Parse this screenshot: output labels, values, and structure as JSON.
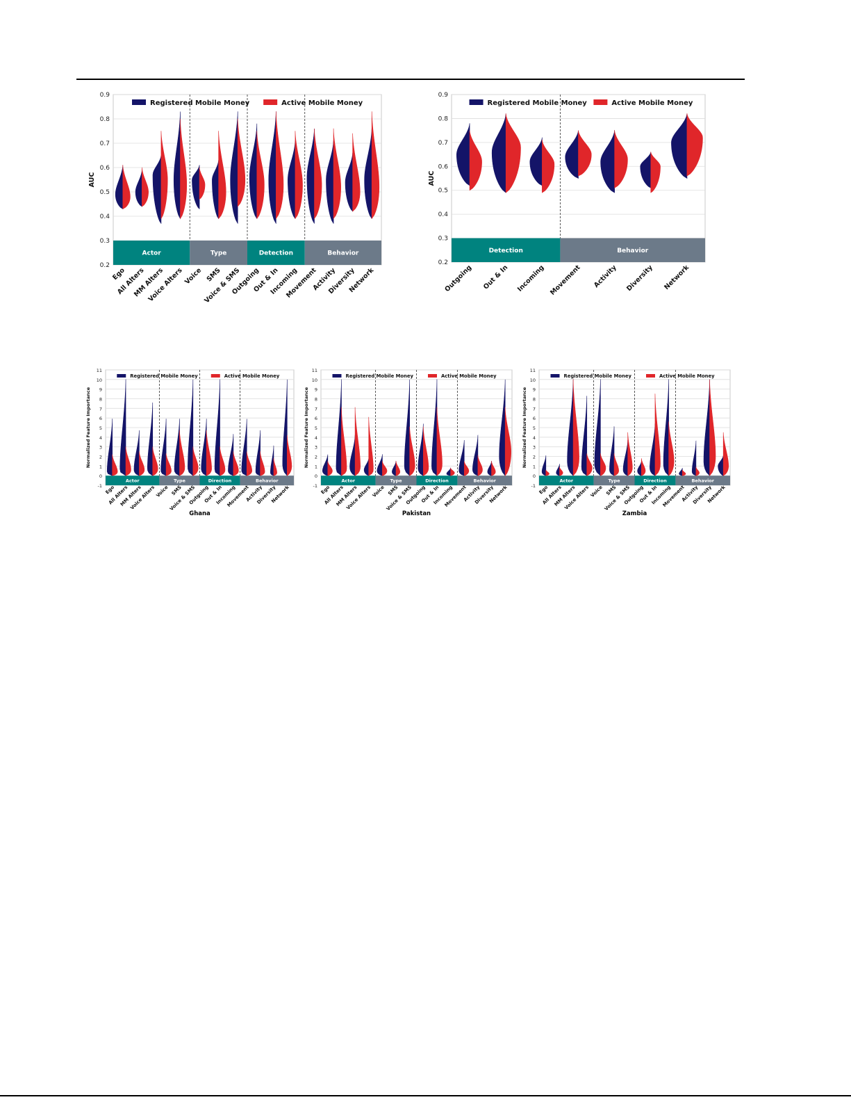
{
  "colors": {
    "registered": "#141468",
    "active": "#e0262a",
    "teal": "#00837f",
    "slate": "#6c7a89",
    "grid": "#dddddd",
    "frame": "#c8c8c8"
  },
  "chart_data": [
    {
      "type": "violin",
      "ylabel": "AUC",
      "ylim": [
        0.2,
        0.9
      ],
      "yticks": [
        0.2,
        0.3,
        0.4,
        0.5,
        0.6,
        0.7,
        0.8,
        0.9
      ],
      "legend_placement": "top",
      "legend": [
        "Registered Mobile Money",
        "Active Mobile Money"
      ],
      "band_top": 0.3,
      "categories": [
        "Ego",
        "All Alters",
        "MM Alters",
        "Voice Alters",
        "Voice",
        "SMS",
        "Voice & SMS",
        "Outgoing",
        "Out & In",
        "Incoming",
        "Movement",
        "Activity",
        "Diversity",
        "Network"
      ],
      "groups": [
        {
          "label": "Actor",
          "color": "teal",
          "span": [
            0,
            4
          ]
        },
        {
          "label": "Type",
          "color": "slate",
          "span": [
            4,
            7
          ]
        },
        {
          "label": "Detection",
          "color": "teal",
          "span": [
            7,
            10
          ]
        },
        {
          "label": "Behavior",
          "color": "slate",
          "span": [
            10,
            14
          ]
        }
      ],
      "series": [
        {
          "name": "Registered Mobile Money",
          "min": [
            0.43,
            0.44,
            0.37,
            0.39,
            0.43,
            0.39,
            0.37,
            0.39,
            0.37,
            0.39,
            0.37,
            0.37,
            0.42,
            0.39
          ],
          "max": [
            0.61,
            0.59,
            0.65,
            0.83,
            0.61,
            0.63,
            0.83,
            0.78,
            0.83,
            0.71,
            0.76,
            0.71,
            0.66,
            0.76
          ],
          "peak": [
            0.49,
            0.5,
            0.57,
            0.55,
            0.55,
            0.55,
            0.55,
            0.56,
            0.55,
            0.55,
            0.56,
            0.55,
            0.54,
            0.55
          ],
          "width": [
            0.8,
            0.7,
            0.9,
            0.7,
            0.8,
            0.7,
            0.8,
            0.8,
            0.8,
            0.8,
            0.8,
            0.8,
            0.8,
            0.8
          ]
        },
        {
          "name": "Active Mobile Money",
          "min": [
            0.43,
            0.44,
            0.39,
            0.39,
            0.47,
            0.39,
            0.44,
            0.39,
            0.39,
            0.39,
            0.39,
            0.39,
            0.42,
            0.39
          ],
          "max": [
            0.61,
            0.6,
            0.75,
            0.8,
            0.6,
            0.75,
            0.8,
            0.75,
            0.83,
            0.75,
            0.76,
            0.76,
            0.74,
            0.83
          ],
          "peak": [
            0.48,
            0.5,
            0.55,
            0.53,
            0.53,
            0.5,
            0.55,
            0.53,
            0.53,
            0.53,
            0.53,
            0.52,
            0.5,
            0.52
          ],
          "width": [
            0.8,
            0.7,
            0.7,
            0.7,
            0.6,
            0.8,
            0.8,
            0.8,
            0.8,
            0.8,
            0.8,
            0.8,
            0.8,
            0.8
          ]
        }
      ]
    },
    {
      "type": "violin",
      "ylabel": "AUC",
      "ylim": [
        0.2,
        0.9
      ],
      "yticks": [
        0.2,
        0.3,
        0.4,
        0.5,
        0.6,
        0.7,
        0.8,
        0.9
      ],
      "legend_placement": "top",
      "legend": [
        "Registered Mobile Money",
        "Active Mobile Money"
      ],
      "band_top": 0.3,
      "categories": [
        "Outgoing",
        "Out & In",
        "Incoming",
        "Movement",
        "Activity",
        "Diversity",
        "Network"
      ],
      "groups": [
        {
          "label": "Detection",
          "color": "teal",
          "span": [
            0,
            3
          ]
        },
        {
          "label": "Behavior",
          "color": "slate",
          "span": [
            3,
            7
          ]
        }
      ],
      "series": [
        {
          "name": "Registered Mobile Money",
          "min": [
            0.52,
            0.49,
            0.52,
            0.55,
            0.49,
            0.51,
            0.55
          ],
          "max": [
            0.78,
            0.82,
            0.72,
            0.75,
            0.75,
            0.66,
            0.82
          ],
          "peak": [
            0.65,
            0.66,
            0.62,
            0.64,
            0.62,
            0.6,
            0.7
          ],
          "width": [
            0.75,
            0.8,
            0.7,
            0.75,
            0.8,
            0.6,
            0.9
          ]
        },
        {
          "name": "Active Mobile Money",
          "min": [
            0.5,
            0.49,
            0.49,
            0.56,
            0.51,
            0.49,
            0.56
          ],
          "max": [
            0.75,
            0.82,
            0.71,
            0.75,
            0.75,
            0.66,
            0.82
          ],
          "peak": [
            0.62,
            0.68,
            0.61,
            0.65,
            0.63,
            0.6,
            0.72
          ],
          "width": [
            0.7,
            0.85,
            0.7,
            0.75,
            0.75,
            0.55,
            0.9
          ]
        }
      ]
    },
    {
      "type": "violin",
      "title": "Ghana",
      "ylabel": "Normalized Feature Importance",
      "ylim": [
        -1,
        11
      ],
      "yticks": [
        -1,
        0,
        1,
        2,
        3,
        4,
        5,
        6,
        7,
        8,
        9,
        10,
        11
      ],
      "legend_placement": "top",
      "legend": [
        "Registered Mobile Money",
        "Active Mobile Money"
      ],
      "band_top": 0,
      "categories": [
        "Ego",
        "All Alters",
        "MM Alters",
        "Voice Alters",
        "Voice",
        "SMS",
        "Voice & SMS",
        "Outgoing",
        "Out & In",
        "Incoming",
        "Movement",
        "Activity",
        "Diversity",
        "Network"
      ],
      "groups": [
        {
          "label": "Actor",
          "color": "teal",
          "span": [
            0,
            4
          ]
        },
        {
          "label": "Type",
          "color": "slate",
          "span": [
            4,
            7
          ]
        },
        {
          "label": "Direction",
          "color": "teal",
          "span": [
            7,
            10
          ]
        },
        {
          "label": "Behavior",
          "color": "slate",
          "span": [
            10,
            14
          ]
        }
      ],
      "series": [
        {
          "name": "Registered Mobile Money",
          "min": [
            0,
            0,
            0,
            0,
            0,
            0,
            0,
            0,
            0,
            0,
            0,
            0,
            0,
            0
          ],
          "max": [
            5.9,
            10,
            4.7,
            7.6,
            5.9,
            5.9,
            10,
            5.9,
            10,
            4.3,
            5.9,
            4.7,
            3.1,
            10
          ],
          "peak": [
            0.4,
            0.6,
            0.6,
            0.7,
            0.5,
            0.6,
            0.8,
            0.7,
            0.6,
            0.5,
            0.5,
            0.4,
            0.3,
            1.2
          ],
          "width": [
            0.8,
            0.9,
            0.8,
            0.8,
            0.8,
            0.8,
            0.8,
            0.8,
            0.8,
            0.8,
            0.8,
            0.7,
            0.5,
            0.7
          ]
        },
        {
          "name": "Active Mobile Money",
          "min": [
            0,
            0,
            0,
            0,
            0,
            0,
            0,
            0,
            0,
            0,
            0,
            0,
            0,
            0
          ],
          "max": [
            2.2,
            3,
            2.5,
            3,
            2.3,
            4.7,
            3,
            4.7,
            3,
            2.5,
            2.5,
            2.5,
            1.8,
            4.2
          ],
          "peak": [
            0.4,
            0.6,
            0.6,
            0.7,
            0.5,
            0.8,
            0.8,
            0.7,
            0.6,
            0.5,
            0.5,
            0.4,
            0.3,
            1.0
          ],
          "width": [
            0.8,
            0.8,
            0.8,
            0.8,
            0.8,
            0.8,
            0.8,
            0.8,
            0.8,
            0.8,
            0.8,
            0.7,
            0.5,
            0.7
          ]
        }
      ]
    },
    {
      "type": "violin",
      "title": "Pakistan",
      "ylabel": "Normalized Feature Importance",
      "ylim": [
        -1,
        11
      ],
      "yticks": [
        -1,
        0,
        1,
        2,
        3,
        4,
        5,
        6,
        7,
        8,
        9,
        10,
        11
      ],
      "legend_placement": "top",
      "legend": [
        "Registered Mobile Money",
        "Active Mobile Money"
      ],
      "band_top": 0,
      "categories": [
        "Ego",
        "All Alters",
        "MM Alters",
        "Voice Alters",
        "Voice",
        "SMS",
        "Voice & SMS",
        "Outgoing",
        "Out & In",
        "Incoming",
        "Movement",
        "Activity",
        "Diversity",
        "Network"
      ],
      "groups": [
        {
          "label": "Actor",
          "color": "teal",
          "span": [
            0,
            4
          ]
        },
        {
          "label": "Type",
          "color": "slate",
          "span": [
            4,
            7
          ]
        },
        {
          "label": "Direction",
          "color": "teal",
          "span": [
            7,
            10
          ]
        },
        {
          "label": "Behavior",
          "color": "slate",
          "span": [
            10,
            14
          ]
        }
      ],
      "series": [
        {
          "name": "Registered Mobile Money",
          "min": [
            0,
            0,
            0,
            0,
            0,
            0,
            0,
            0,
            0,
            0,
            0,
            0,
            0,
            0
          ],
          "max": [
            2.2,
            10,
            4.2,
            1.8,
            2.2,
            1.5,
            10,
            5.4,
            10,
            0.8,
            3.7,
            4.2,
            1.5,
            10
          ],
          "peak": [
            0.5,
            0.7,
            0.9,
            0.6,
            0.5,
            0.4,
            1.0,
            0.8,
            0.9,
            0.2,
            0.5,
            0.6,
            0.4,
            2.0
          ],
          "width": [
            0.8,
            0.8,
            0.8,
            0.7,
            0.8,
            0.6,
            0.8,
            0.8,
            0.8,
            0.6,
            0.8,
            0.8,
            0.6,
            0.9
          ]
        },
        {
          "name": "Active Mobile Money",
          "min": [
            0,
            0,
            0,
            0,
            0,
            0,
            0,
            0,
            0,
            0,
            0,
            0,
            0,
            0
          ],
          "max": [
            1.5,
            7.1,
            7.1,
            6.1,
            1.5,
            1.5,
            5.1,
            5.1,
            7.1,
            0.8,
            1.5,
            2.1,
            1.5,
            7.1
          ],
          "peak": [
            0.5,
            0.7,
            0.9,
            0.6,
            0.5,
            0.4,
            1.0,
            0.8,
            1.2,
            0.3,
            0.5,
            0.6,
            0.4,
            2.5
          ],
          "width": [
            0.7,
            0.8,
            0.8,
            0.7,
            0.7,
            0.6,
            0.8,
            0.8,
            0.8,
            0.6,
            0.7,
            0.7,
            0.6,
            0.9
          ]
        }
      ]
    },
    {
      "type": "violin",
      "title": "Zambia",
      "ylabel": "Normalized Feature Importance",
      "ylim": [
        -1,
        11
      ],
      "yticks": [
        -1,
        0,
        1,
        2,
        3,
        4,
        5,
        6,
        7,
        8,
        9,
        10,
        11
      ],
      "legend_placement": "top",
      "legend": [
        "Registered Mobile Money",
        "Active Mobile Money"
      ],
      "band_top": 0,
      "categories": [
        "Ego",
        "All Alters",
        "MM Alters",
        "Voice Alters",
        "Voice",
        "SMS",
        "Voice & SMS",
        "Outgoing",
        "Out & In",
        "Incoming",
        "Movement",
        "Activity",
        "Diversity",
        "Network"
      ],
      "groups": [
        {
          "label": "Actor",
          "color": "teal",
          "span": [
            0,
            4
          ]
        },
        {
          "label": "Type",
          "color": "slate",
          "span": [
            4,
            7
          ]
        },
        {
          "label": "Direction",
          "color": "teal",
          "span": [
            7,
            10
          ]
        },
        {
          "label": "Behavior",
          "color": "slate",
          "span": [
            10,
            14
          ]
        }
      ],
      "series": [
        {
          "name": "Registered Mobile Money",
          "min": [
            0,
            0,
            0,
            0,
            0,
            0,
            0,
            0,
            0,
            0,
            0,
            0,
            0,
            0
          ],
          "max": [
            2.1,
            1.2,
            10,
            8.3,
            10,
            5.1,
            3.7,
            1.5,
            5.4,
            10,
            0.8,
            3.6,
            10,
            2.1
          ],
          "peak": [
            0.4,
            0.3,
            1.5,
            0.8,
            1.2,
            0.6,
            0.6,
            0.5,
            0.8,
            1.2,
            0.2,
            0.4,
            1.5,
            1.0
          ],
          "width": [
            0.6,
            0.5,
            0.9,
            0.8,
            0.9,
            0.7,
            0.7,
            0.6,
            0.8,
            0.8,
            0.5,
            0.6,
            0.9,
            0.8
          ]
        },
        {
          "name": "Active Mobile Money",
          "min": [
            0,
            0,
            0,
            0,
            0,
            0,
            0,
            0,
            0,
            0,
            0,
            0,
            0,
            0
          ],
          "max": [
            0.6,
            0.9,
            10,
            2.3,
            2.3,
            2.3,
            4.5,
            1.8,
            8.5,
            5.6,
            0.6,
            0.9,
            10,
            4.5
          ],
          "peak": [
            0.2,
            0.3,
            1.8,
            0.8,
            0.8,
            0.5,
            0.8,
            0.5,
            1.2,
            1.5,
            0.2,
            0.3,
            2.0,
            1.0
          ],
          "width": [
            0.5,
            0.5,
            0.9,
            0.8,
            0.8,
            0.7,
            0.7,
            0.6,
            0.8,
            0.8,
            0.5,
            0.5,
            0.9,
            0.8
          ]
        }
      ]
    }
  ]
}
